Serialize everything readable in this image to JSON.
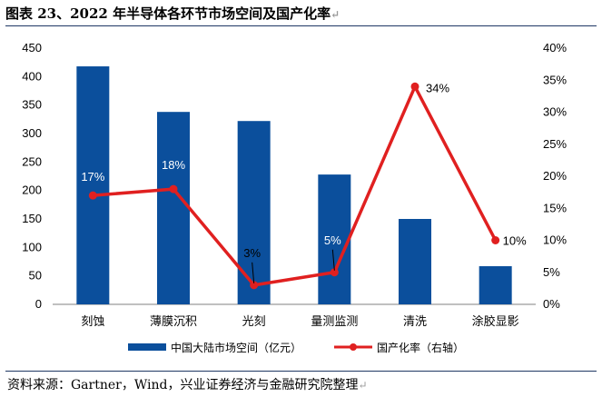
{
  "header": {
    "title": "图表 23、2022 年半导体各环节市场空间及国产化率",
    "source": "资料来源：Gartner，Wind，兴业证券经济与金融研究院整理"
  },
  "chart_data": {
    "type": "bar",
    "categories": [
      "刻蚀",
      "薄膜沉积",
      "光刻",
      "量测监测",
      "清洗",
      "涂胶显影"
    ],
    "series": [
      {
        "name": "中国大陆市场空间（亿元）",
        "type": "bar",
        "axis": "left",
        "color": "#0b4f9c",
        "values": [
          418,
          338,
          322,
          228,
          150,
          67
        ]
      },
      {
        "name": "国产化率（右轴）",
        "type": "line",
        "axis": "right",
        "color": "#e02020",
        "values": [
          17,
          18,
          3,
          5,
          34,
          10
        ],
        "data_labels": [
          "17%",
          "18%",
          "3%",
          "5%",
          "34%",
          "10%"
        ]
      }
    ],
    "y_left": {
      "min": 0,
      "max": 450,
      "ticks": [
        0,
        50,
        100,
        150,
        200,
        250,
        300,
        350,
        400,
        450
      ]
    },
    "y_right": {
      "min": 0,
      "max": 40,
      "ticks": [
        "0%",
        "5%",
        "10%",
        "15%",
        "20%",
        "25%",
        "30%",
        "35%",
        "40%"
      ]
    },
    "legend_position": "bottom",
    "grid": false
  }
}
